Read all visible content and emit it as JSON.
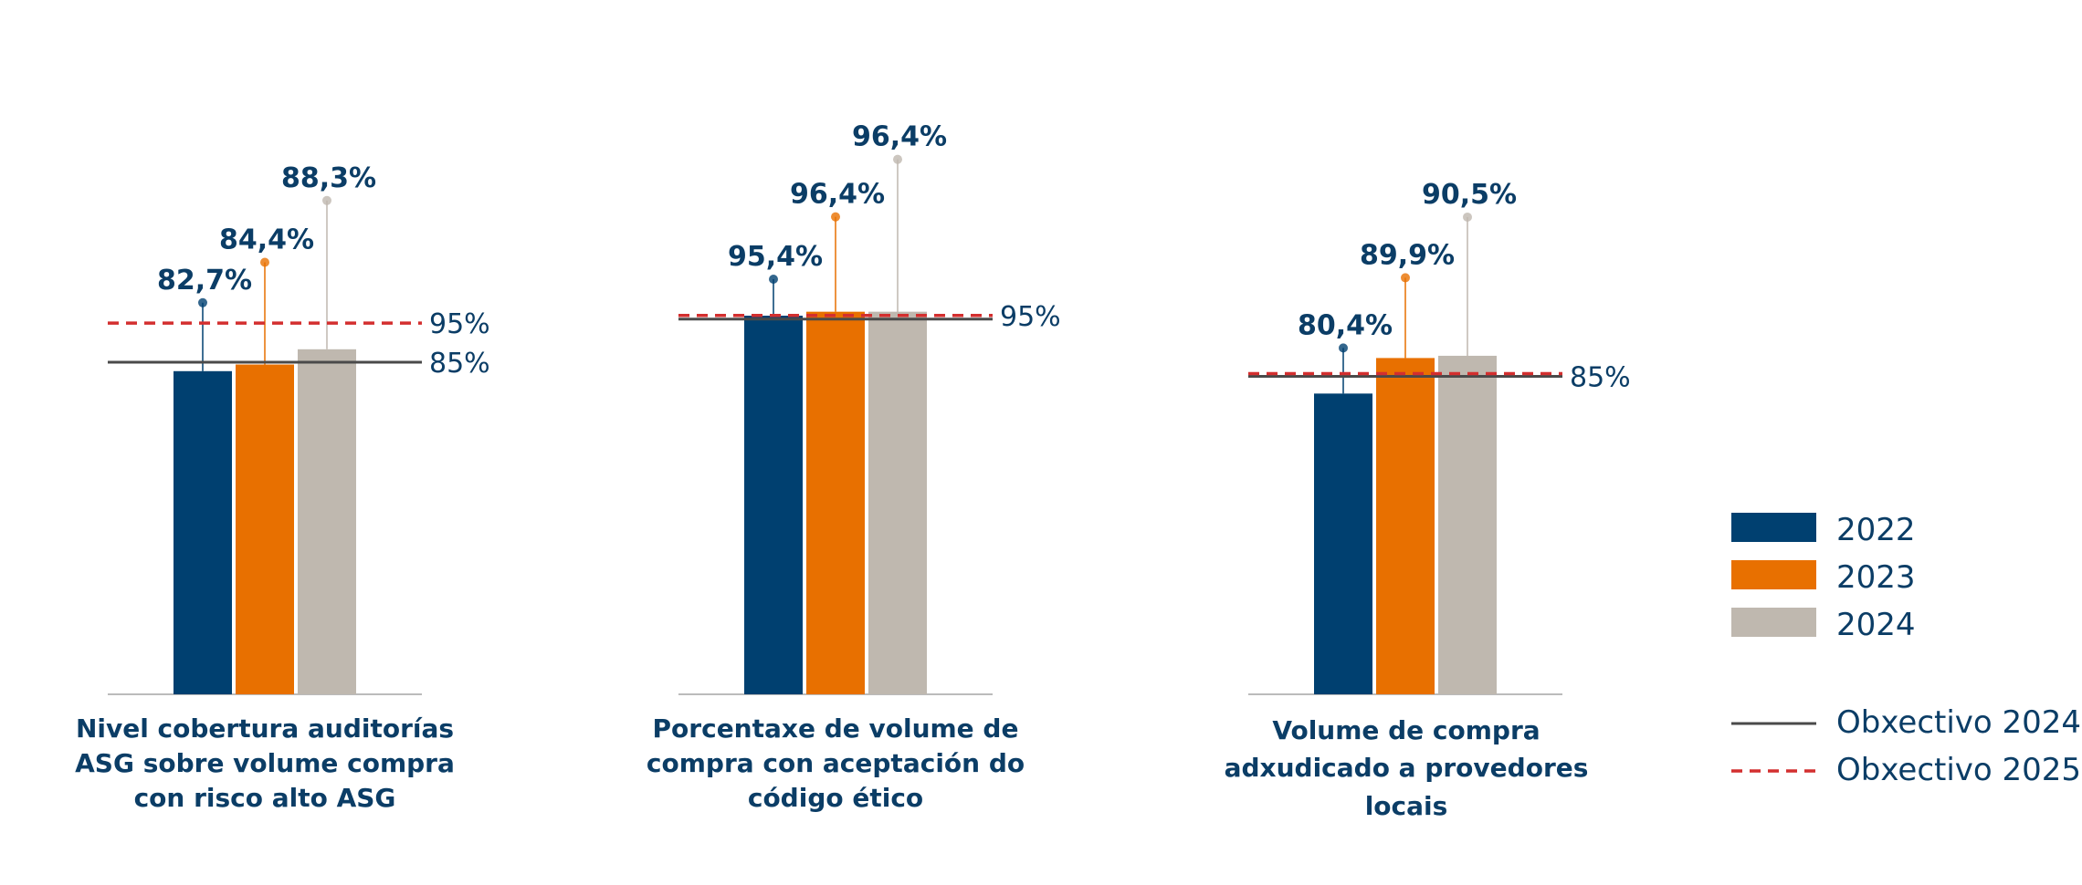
{
  "chart_data": {
    "type": "bar",
    "series": [
      {
        "name": "2022",
        "color": "#004070"
      },
      {
        "name": "2023",
        "color": "#E87000"
      },
      {
        "name": "2024",
        "color": "#BFB8AF"
      }
    ],
    "groups": [
      {
        "category_lines": [
          "Nivel cobertura auditorías",
          "ASG sobre volume compra",
          "con risco alto ASG"
        ],
        "values": [
          82.7,
          84.4,
          88.3
        ],
        "value_labels": [
          "82,7%",
          "84,4%",
          "88,3%"
        ],
        "target_2024": 85,
        "target_2024_label": "85%",
        "target_2025": 95,
        "target_2025_label": "95%"
      },
      {
        "category_lines": [
          "Porcentaxe de volume de",
          "compra con aceptación do",
          "código ético"
        ],
        "values": [
          95.4,
          96.4,
          96.4
        ],
        "value_labels": [
          "95,4%",
          "96,4%",
          "96,4%"
        ],
        "target_2024": 95,
        "target_2024_label": "",
        "target_2025": 95,
        "target_2025_label": "95%"
      },
      {
        "category_lines": [
          "Volume de compra",
          "adxudicado a provedores",
          "locais"
        ],
        "values": [
          80.4,
          89.9,
          90.5
        ],
        "value_labels": [
          "80,4%",
          "89,9%",
          "90,5%"
        ],
        "target_2024": 85,
        "target_2024_label": "85%",
        "target_2025": 85,
        "target_2025_label": ""
      }
    ],
    "legend": {
      "placement": "right",
      "target_2024": "Obxectivo 2024",
      "target_2025": "Obxectivo 2025",
      "target_2024_color": "#4A4A4A",
      "target_2025_color": "#D32F2F"
    },
    "colors": {
      "text": "#0B3D66",
      "axis": "#BBBBBB"
    },
    "grid": false
  }
}
